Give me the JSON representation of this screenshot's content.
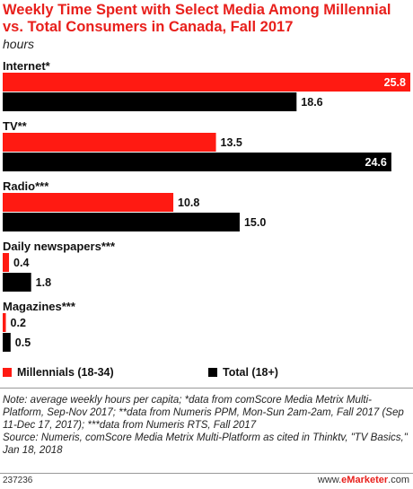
{
  "chart_data": {
    "type": "bar",
    "orientation": "horizontal",
    "title": "Weekly Time Spent with Select Media Among Millennial vs. Total Consumers in Canada, Fall 2017",
    "subtitle": "hours",
    "categories": [
      "Internet*",
      "TV**",
      "Radio***",
      "Daily newspapers***",
      "Magazines***"
    ],
    "series": [
      {
        "name": "Millennials (18-34)",
        "color": "#ff1a12",
        "values": [
          25.8,
          13.5,
          10.8,
          0.4,
          0.2
        ],
        "labels": [
          "25.8",
          "13.5",
          "10.8",
          "0.4",
          "0.2"
        ]
      },
      {
        "name": "Total (18+)",
        "color": "#000000",
        "values": [
          18.6,
          24.6,
          15.0,
          1.8,
          0.5
        ],
        "labels": [
          "18.6",
          "24.6",
          "15.0",
          "1.8",
          "0.5"
        ]
      }
    ],
    "xlim": [
      0,
      25.8
    ],
    "grid": false,
    "legend_position": "bottom"
  },
  "notes": {
    "note": "Note: average weekly hours per capita; *data from comScore Media Metrix Multi-Platform, Sep-Nov 2017; **data from Numeris PPM, Mon-Sun 2am-2am, Fall 2017 (Sep 11-Dec 17, 2017); ***data from Numeris RTS, Fall 2017",
    "source": "Source: Numeris, comScore Media Metrix Multi-Platform as cited in Thinktv, \"TV Basics,\" Jan 18, 2018"
  },
  "footer": {
    "id": "237236",
    "brand_prefix": "www.",
    "brand_name": "eMarketer",
    "brand_suffix": ".com"
  }
}
